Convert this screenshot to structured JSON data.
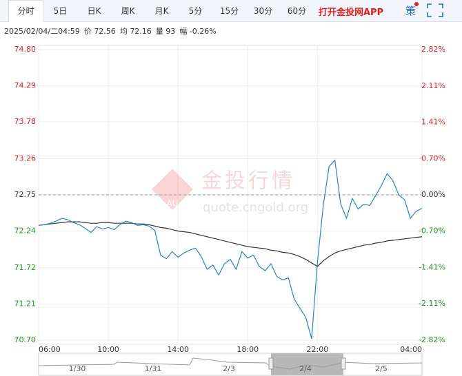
{
  "tabs": [
    "分时",
    "5日",
    "日K",
    "周K",
    "月K",
    "5分",
    "15分",
    "30分",
    "60分"
  ],
  "app_link": "打开金投网APP",
  "strategy": "策",
  "info": {
    "datetime": "2025/02/04/二04:59",
    "fields": [
      {
        "label": "价",
        "value": "72.56"
      },
      {
        "label": "均",
        "value": "72.16"
      },
      {
        "label": "量",
        "value": "93"
      },
      {
        "label": "幅",
        "value": "-0.26%"
      }
    ]
  },
  "watermark": {
    "logo": "AU",
    "title": "金投行情",
    "url": "quote.cngold.org"
  },
  "navigator": {
    "labels": [
      "1/30",
      "1/31",
      "2/3",
      "2/4",
      "2/5"
    ]
  },
  "chart_data": {
    "type": "line",
    "x": [
      "06:00",
      "06:20",
      "06:40",
      "07:00",
      "07:20",
      "07:40",
      "08:00",
      "08:20",
      "08:40",
      "09:00",
      "09:20",
      "09:40",
      "10:00",
      "10:20",
      "10:40",
      "11:00",
      "11:20",
      "11:40",
      "12:00",
      "12:20",
      "12:40",
      "13:00",
      "13:20",
      "13:40",
      "14:00",
      "14:20",
      "14:40",
      "15:00",
      "15:20",
      "15:40",
      "16:00",
      "16:20",
      "16:40",
      "17:00",
      "17:20",
      "17:40",
      "18:00",
      "18:20",
      "18:40",
      "19:00",
      "19:20",
      "19:40",
      "20:00",
      "20:20",
      "20:40",
      "21:00",
      "21:20",
      "21:40",
      "22:00",
      "22:20",
      "22:40",
      "23:00",
      "23:20",
      "23:40",
      "00:00",
      "00:20",
      "00:40",
      "01:00",
      "01:20",
      "01:40",
      "02:00",
      "02:20",
      "02:40",
      "03:00",
      "03:20",
      "03:40",
      "04:00"
    ],
    "xticks": [
      "06:00",
      "10:00",
      "14:00",
      "18:00",
      "22:00",
      "04:00"
    ],
    "series": [
      {
        "name": "价",
        "color": "#1f84d6",
        "values": [
          72.32,
          72.33,
          72.35,
          72.38,
          72.42,
          72.4,
          72.36,
          72.33,
          72.28,
          72.22,
          72.3,
          72.27,
          72.29,
          72.26,
          72.33,
          72.38,
          72.36,
          72.32,
          72.33,
          72.31,
          72.25,
          71.9,
          71.85,
          71.95,
          71.87,
          71.93,
          71.97,
          72.0,
          71.88,
          71.7,
          71.76,
          71.62,
          71.78,
          71.84,
          71.7,
          71.95,
          71.86,
          71.9,
          71.74,
          71.68,
          71.78,
          71.6,
          71.55,
          71.58,
          71.28,
          71.15,
          71.02,
          70.72,
          71.8,
          72.6,
          73.15,
          73.24,
          72.62,
          72.42,
          72.7,
          72.55,
          72.62,
          72.6,
          72.74,
          72.88,
          73.05,
          72.95,
          72.75,
          72.68,
          72.42,
          72.52,
          72.56
        ]
      },
      {
        "name": "均",
        "color": "#333333",
        "values": [
          72.32,
          72.33,
          72.34,
          72.35,
          72.36,
          72.37,
          72.37,
          72.37,
          72.36,
          72.35,
          72.35,
          72.36,
          72.36,
          72.35,
          72.35,
          72.35,
          72.35,
          72.34,
          72.34,
          72.33,
          72.31,
          72.29,
          72.28,
          72.26,
          72.24,
          72.23,
          72.22,
          72.2,
          72.18,
          72.16,
          72.14,
          72.12,
          72.1,
          72.08,
          72.06,
          72.04,
          72.02,
          72.01,
          72.0,
          71.99,
          71.97,
          71.96,
          71.94,
          71.93,
          71.91,
          71.88,
          71.84,
          71.79,
          71.74,
          71.82,
          71.88,
          71.93,
          71.96,
          71.98,
          72.0,
          72.02,
          72.04,
          72.05,
          72.07,
          72.08,
          72.1,
          72.11,
          72.12,
          72.13,
          72.14,
          72.15,
          72.16
        ]
      }
    ],
    "reference": 72.75,
    "ylim": [
      70.7,
      74.8
    ],
    "yticks": [
      {
        "value": 74.8,
        "label": "74.80"
      },
      74.29,
      73.78,
      73.26,
      72.75,
      72.24,
      71.72,
      71.21,
      {
        "value": 70.7,
        "label": "70.70"
      }
    ],
    "y2lim": [
      -2.82,
      2.82
    ],
    "y2ticks": [
      {
        "value": 2.82,
        "label": "2.82%"
      },
      {
        "value": 2.11,
        "label": "2.11%"
      },
      {
        "value": 1.41,
        "label": "1.41%"
      },
      {
        "value": 0.7,
        "label": "0.70%"
      },
      {
        "value": 0,
        "label": "0.00%"
      },
      {
        "value": -0.7,
        "label": "-0.70%"
      },
      {
        "value": -1.41,
        "label": "-1.41%"
      },
      {
        "value": -2.11,
        "label": "-2.11%"
      },
      {
        "value": -2.82,
        "label": "-2.82%"
      }
    ],
    "grid": true
  }
}
